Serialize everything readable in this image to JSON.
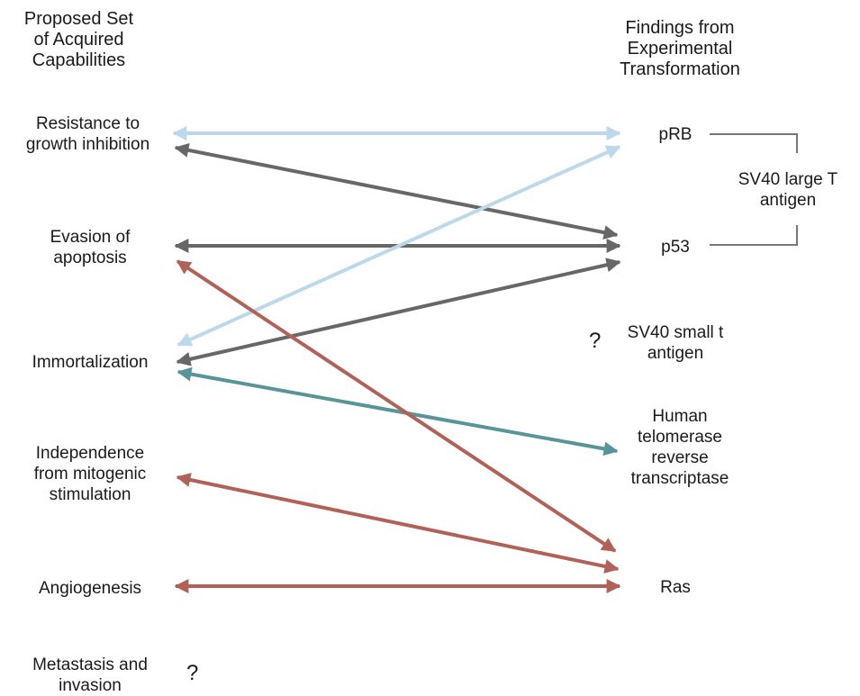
{
  "header": {
    "left": "Proposed Set\nof Acquired\nCapabilities",
    "right": "Findings from\nExperimental\nTransformation"
  },
  "capabilities": {
    "resistance": "Resistance to\ngrowth inhibition",
    "evasion": "Evasion of\napoptosis",
    "immortalization": "Immortalization",
    "independence": "Independence\nfrom mitogenic\nstimulation",
    "angiogenesis": "Angiogenesis",
    "metastasis": "Metastasis and\ninvasion"
  },
  "findings": {
    "prb": "pRB",
    "p53": "p53",
    "small_t": "SV40 small t\nantigen",
    "htert": "Human\ntelomerase\nreverse\ntranscriptase",
    "ras": "Ras"
  },
  "bracket_label": "SV40 large T\nantigen",
  "unknown_mark": "?",
  "colors": {
    "light_blue": "#bcd9ea",
    "dark_gray": "#676767",
    "teal": "#58959b",
    "brick": "#b06258",
    "bracket": "#777777"
  }
}
